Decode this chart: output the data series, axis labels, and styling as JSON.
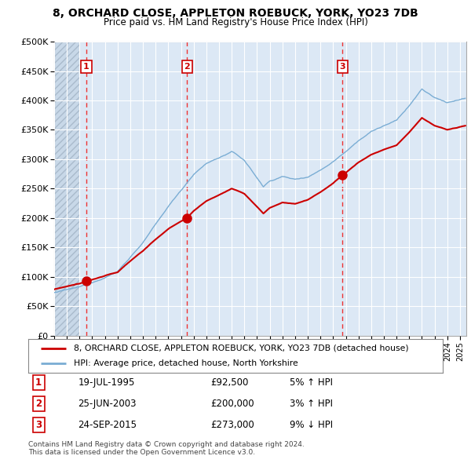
{
  "title": "8, ORCHARD CLOSE, APPLETON ROEBUCK, YORK, YO23 7DB",
  "subtitle": "Price paid vs. HM Land Registry's House Price Index (HPI)",
  "legend_line1": "8, ORCHARD CLOSE, APPLETON ROEBUCK, YORK, YO23 7DB (detached house)",
  "legend_line2": "HPI: Average price, detached house, North Yorkshire",
  "footer1": "Contains HM Land Registry data © Crown copyright and database right 2024.",
  "footer2": "This data is licensed under the Open Government Licence v3.0.",
  "sale_points": [
    {
      "label": "1",
      "date": "19-JUL-1995",
      "price": 92500,
      "hpi_change": "5% ↑ HPI",
      "year": 1995.54
    },
    {
      "label": "2",
      "date": "25-JUN-2003",
      "price": 200000,
      "hpi_change": "3% ↑ HPI",
      "year": 2003.48
    },
    {
      "label": "3",
      "date": "24-SEP-2015",
      "price": 273000,
      "hpi_change": "9% ↓ HPI",
      "year": 2015.73
    }
  ],
  "hpi_color": "#7aadd4",
  "property_color": "#cc0000",
  "dashed_line_color": "#ee3333",
  "background_color": "#ffffff",
  "chart_bg_color": "#dce8f5",
  "grid_color": "#ffffff",
  "hatch_fill_color": "#c8d8e8",
  "ylim": [
    0,
    500000
  ],
  "xlim_start": 1993.0,
  "xlim_end": 2025.5,
  "hatch_end": 1995.0
}
